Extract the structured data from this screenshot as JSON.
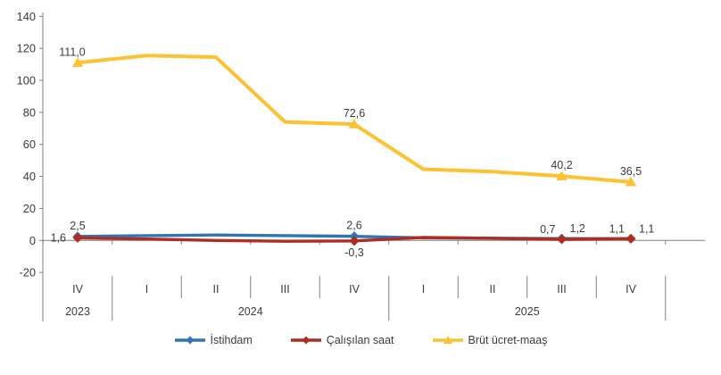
{
  "chart_data": {
    "type": "line",
    "title": "",
    "categories": [
      "IV",
      "I",
      "II",
      "III",
      "IV",
      "I",
      "II",
      "III",
      "IV"
    ],
    "year_groups": [
      {
        "label": "2023",
        "start": 0,
        "end": 0
      },
      {
        "label": "2024",
        "start": 1,
        "end": 4
      },
      {
        "label": "2025",
        "start": 5,
        "end": 8
      }
    ],
    "ylim": [
      -20,
      140
    ],
    "yticks": [
      140,
      120,
      100,
      80,
      60,
      40,
      20,
      0,
      -20
    ],
    "grid": false,
    "legend_position": "bottom",
    "axis_color": "#808080",
    "text_color": "#3b3b3b",
    "series": [
      {
        "name": "İstihdam",
        "color": "#2E75B6",
        "marker": "diamond",
        "values": [
          2.5,
          3.0,
          3.4,
          3.0,
          2.6,
          1.6,
          1.4,
          1.2,
          1.1
        ],
        "labeled_points": [
          {
            "index": 0,
            "text": "2,5",
            "pos": "above"
          },
          {
            "index": 4,
            "text": "2,6",
            "pos": "above"
          },
          {
            "index": 7,
            "text": "1,2",
            "pos": "above-right"
          },
          {
            "index": 8,
            "text": "1,1",
            "pos": "above-right"
          }
        ]
      },
      {
        "name": "Çalışılan saat",
        "color": "#B02B20",
        "marker": "diamond",
        "values": [
          1.6,
          0.9,
          0.0,
          -0.5,
          -0.3,
          1.9,
          1.3,
          0.7,
          1.1
        ],
        "labeled_points": [
          {
            "index": 0,
            "text": "1,6",
            "pos": "left"
          },
          {
            "index": 4,
            "text": "-0,3",
            "pos": "below"
          },
          {
            "index": 7,
            "text": "0,7",
            "pos": "above-left"
          },
          {
            "index": 8,
            "text": "1,1",
            "pos": "above-left"
          }
        ]
      },
      {
        "name": "Brüt ücret-maaş",
        "color": "#FDC131",
        "marker": "triangle",
        "values": [
          111.0,
          115.5,
          114.5,
          74.0,
          72.6,
          44.5,
          43.0,
          40.2,
          36.5
        ],
        "labeled_points": [
          {
            "index": 0,
            "text": "111,0",
            "pos": "above",
            "dx": -6
          },
          {
            "index": 4,
            "text": "72,6",
            "pos": "above"
          },
          {
            "index": 7,
            "text": "40,2",
            "pos": "above"
          },
          {
            "index": 8,
            "text": "36,5",
            "pos": "above"
          }
        ]
      }
    ]
  }
}
